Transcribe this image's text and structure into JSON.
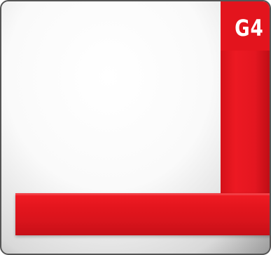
{
  "badge": {
    "label": "G4",
    "color": "#e3141d",
    "text_color": "#ffffff"
  },
  "colors": {
    "accent_red": "#e3141d",
    "border": "#555555",
    "panel_background": "#ffffff"
  }
}
